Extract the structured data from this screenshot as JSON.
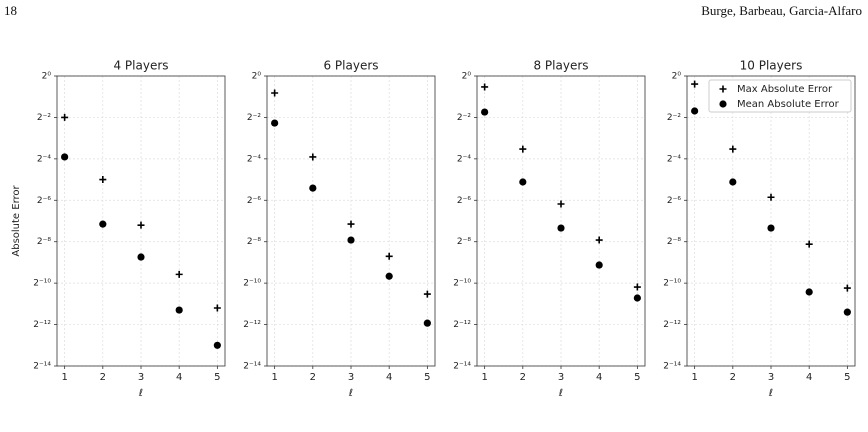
{
  "page_header": {
    "page_number": "18",
    "authors": "Burge, Barbeau, Garcia-Alfaro"
  },
  "chart_data": [
    {
      "type": "scatter",
      "title": "4 Players",
      "y_label": "Absolute Error",
      "x_label": "ℓ",
      "log_base": 2,
      "grid": true,
      "x": [
        1,
        2,
        3,
        4,
        5
      ],
      "xlim": [
        0.8,
        5.2
      ],
      "xticks": [
        1,
        2,
        3,
        4,
        5
      ],
      "ylim": [
        6.103515625e-05,
        1
      ],
      "yticks": [
        {
          "value": 1,
          "label": "2⁰"
        },
        {
          "value": 0.25,
          "label": "2⁻²"
        },
        {
          "value": 0.0625,
          "label": "2⁻⁴"
        },
        {
          "value": 0.015625,
          "label": "2⁻⁶"
        },
        {
          "value": 0.00390625,
          "label": "2⁻⁸"
        },
        {
          "value": 0.0009765625,
          "label": "2⁻¹⁰"
        },
        {
          "value": 0.000244140625,
          "label": "2⁻¹²"
        },
        {
          "value": 6.103515625e-05,
          "label": "2⁻¹⁴"
        }
      ],
      "series": [
        {
          "marker": "plus",
          "color": "#000000",
          "values": [
            0.25,
            0.0313,
            0.0068,
            0.00131,
            0.000425
          ]
        },
        {
          "marker": "circle",
          "color": "#000000",
          "values": [
            0.0666,
            0.00704,
            0.00234,
            0.000397,
            0.000122
          ]
        }
      ]
    },
    {
      "type": "scatter",
      "title": "6 Players",
      "x_label": "ℓ",
      "log_base": 2,
      "grid": true,
      "x": [
        1,
        2,
        3,
        4,
        5
      ],
      "xlim": [
        0.8,
        5.2
      ],
      "xticks": [
        1,
        2,
        3,
        4,
        5
      ],
      "ylim": [
        6.103515625e-05,
        1
      ],
      "yticks": [
        {
          "value": 1,
          "label": "2⁰"
        },
        {
          "value": 0.25,
          "label": "2⁻²"
        },
        {
          "value": 0.0625,
          "label": "2⁻⁴"
        },
        {
          "value": 0.015625,
          "label": "2⁻⁶"
        },
        {
          "value": 0.00390625,
          "label": "2⁻⁸"
        },
        {
          "value": 0.0009765625,
          "label": "2⁻¹⁰"
        },
        {
          "value": 0.000244140625,
          "label": "2⁻¹²"
        },
        {
          "value": 6.103515625e-05,
          "label": "2⁻¹⁴"
        }
      ],
      "series": [
        {
          "marker": "plus",
          "color": "#000000",
          "values": [
            0.566,
            0.0666,
            0.00704,
            0.0024,
            0.000677
          ]
        },
        {
          "marker": "circle",
          "color": "#000000",
          "values": [
            0.207,
            0.0235,
            0.00413,
            0.00123,
            0.000256
          ]
        }
      ]
    },
    {
      "type": "scatter",
      "title": "8 Players",
      "x_label": "ℓ",
      "log_base": 2,
      "grid": true,
      "x": [
        1,
        2,
        3,
        4,
        5
      ],
      "xlim": [
        0.8,
        5.2
      ],
      "xticks": [
        1,
        2,
        3,
        4,
        5
      ],
      "ylim": [
        6.103515625e-05,
        1
      ],
      "yticks": [
        {
          "value": 1,
          "label": "2⁰"
        },
        {
          "value": 0.25,
          "label": "2⁻²"
        },
        {
          "value": 0.0625,
          "label": "2⁻⁴"
        },
        {
          "value": 0.015625,
          "label": "2⁻⁶"
        },
        {
          "value": 0.00390625,
          "label": "2⁻⁸"
        },
        {
          "value": 0.0009765625,
          "label": "2⁻¹⁰"
        },
        {
          "value": 0.000244140625,
          "label": "2⁻¹²"
        },
        {
          "value": 6.103515625e-05,
          "label": "2⁻¹⁴"
        }
      ],
      "series": [
        {
          "marker": "plus",
          "color": "#000000",
          "values": [
            0.693,
            0.0866,
            0.0138,
            0.00413,
            0.000857
          ]
        },
        {
          "marker": "circle",
          "color": "#000000",
          "values": [
            0.299,
            0.0288,
            0.00617,
            0.00179,
            0.000594
          ]
        }
      ]
    },
    {
      "type": "scatter",
      "title": "10 Players",
      "x_label": "ℓ",
      "log_base": 2,
      "grid": true,
      "legend": "upper right",
      "x": [
        1,
        2,
        3,
        4,
        5
      ],
      "xlim": [
        0.8,
        5.2
      ],
      "xticks": [
        1,
        2,
        3,
        4,
        5
      ],
      "ylim": [
        6.103515625e-05,
        1
      ],
      "yticks": [
        {
          "value": 1,
          "label": "2⁰"
        },
        {
          "value": 0.25,
          "label": "2⁻²"
        },
        {
          "value": 0.0625,
          "label": "2⁻⁴"
        },
        {
          "value": 0.015625,
          "label": "2⁻⁶"
        },
        {
          "value": 0.00390625,
          "label": "2⁻⁸"
        },
        {
          "value": 0.0009765625,
          "label": "2⁻¹⁰"
        },
        {
          "value": 0.000244140625,
          "label": "2⁻¹²"
        },
        {
          "value": 6.103515625e-05,
          "label": "2⁻¹⁴"
        }
      ],
      "series": [
        {
          "name": "Max Absolute Error",
          "marker": "plus",
          "color": "#000000",
          "values": [
            0.763,
            0.0866,
            0.0173,
            0.0036,
            0.000828
          ]
        },
        {
          "name": "Mean Absolute Error",
          "marker": "circle",
          "color": "#000000",
          "values": [
            0.31,
            0.0288,
            0.00617,
            0.000726,
            0.00037
          ]
        }
      ]
    }
  ]
}
